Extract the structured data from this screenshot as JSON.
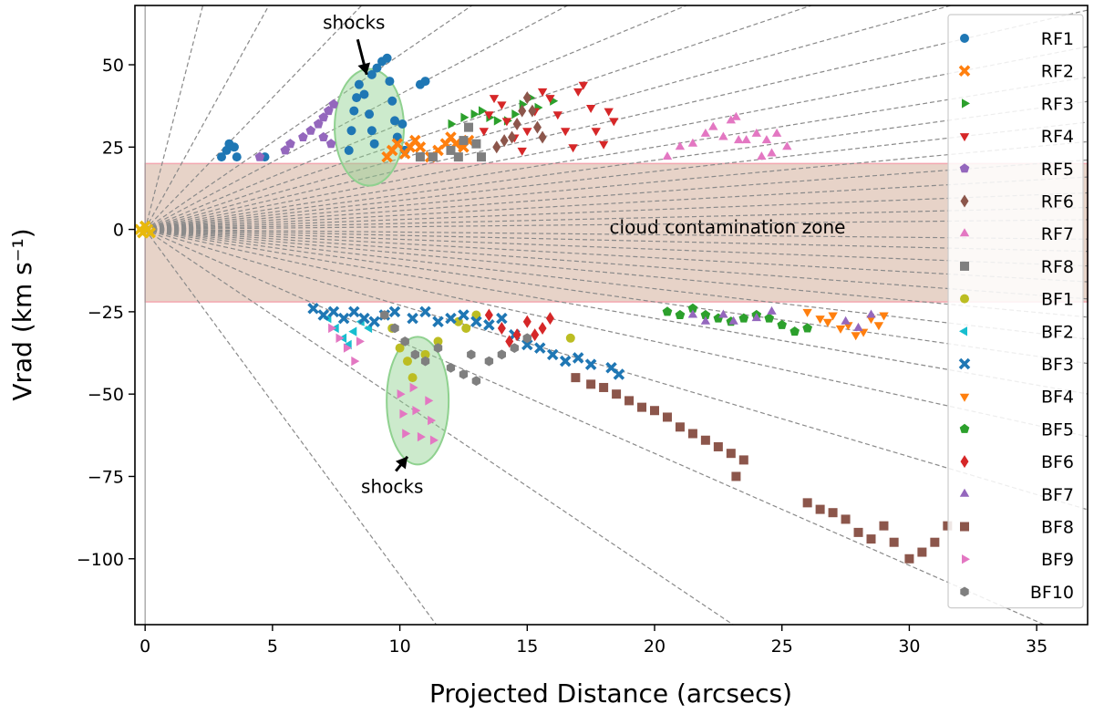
{
  "chart_data": {
    "type": "scatter",
    "xlabel": "Projected Distance (arcsecs)",
    "ylabel": "Vrad (km s⁻¹)",
    "xlim": [
      -0.4,
      37
    ],
    "ylim": [
      -120,
      68
    ],
    "xticks": [
      0,
      5,
      10,
      15,
      20,
      25,
      30,
      35
    ],
    "yticks": [
      50,
      25,
      0,
      -25,
      -50,
      -75,
      -100
    ],
    "xtick_labels": [
      "0",
      "5",
      "10",
      "15",
      "20",
      "25",
      "30",
      "35"
    ],
    "ytick_labels": [
      "50",
      "25",
      "0",
      "−25",
      "−50",
      "−75",
      "−100"
    ],
    "legend_position": "right",
    "grid": false,
    "band": {
      "y_from": -22,
      "y_to": 20,
      "label": "cloud contamination zone",
      "fill": "#e7d3c8",
      "edge": "#f4a6b0"
    },
    "annotations": [
      {
        "text": "shocks",
        "x": 8.2,
        "y": 61,
        "target": [
          8.7,
          47
        ]
      },
      {
        "text": "shocks",
        "x": 9.7,
        "y": -80,
        "target": [
          10.3,
          -69
        ]
      }
    ],
    "reference_line_slopes": [
      30,
      14,
      8,
      5.3,
      4.1,
      3.2,
      2.6,
      2.15,
      1.8,
      1.5,
      1.25,
      1.05,
      0.88,
      0.72,
      0.57,
      0.43,
      0.3,
      0.18,
      0.08,
      -0.08,
      -0.18,
      -0.3,
      -0.43,
      -0.57,
      -0.72,
      -0.9,
      -1.1,
      -1.35,
      -1.7,
      -2.3,
      -3.4,
      -5.2,
      -10.5
    ],
    "series": [
      {
        "name": "RF1",
        "marker": "circle",
        "color": "#1f77b4",
        "points": [
          [
            3.0,
            22
          ],
          [
            3.2,
            24
          ],
          [
            3.3,
            26
          ],
          [
            3.5,
            25
          ],
          [
            3.6,
            22
          ],
          [
            4.7,
            22
          ],
          [
            8.0,
            24
          ],
          [
            8.1,
            30
          ],
          [
            8.2,
            36
          ],
          [
            8.3,
            40
          ],
          [
            8.4,
            44
          ],
          [
            8.6,
            41
          ],
          [
            8.8,
            35
          ],
          [
            8.9,
            30
          ],
          [
            9.0,
            26
          ],
          [
            8.9,
            47
          ],
          [
            9.1,
            49
          ],
          [
            9.3,
            51
          ],
          [
            9.5,
            52
          ],
          [
            9.6,
            45
          ],
          [
            9.7,
            39
          ],
          [
            9.8,
            33
          ],
          [
            9.9,
            28
          ],
          [
            10.1,
            32
          ],
          [
            10.2,
            24
          ],
          [
            10.8,
            44
          ],
          [
            11.0,
            45
          ]
        ]
      },
      {
        "name": "RF2",
        "marker": "x",
        "color": "#ff7f0e",
        "points": [
          [
            9.5,
            22
          ],
          [
            9.7,
            24
          ],
          [
            9.9,
            26
          ],
          [
            10.2,
            23
          ],
          [
            10.4,
            25
          ],
          [
            10.6,
            27
          ],
          [
            10.8,
            25
          ],
          [
            11.2,
            22
          ],
          [
            11.5,
            24
          ],
          [
            11.8,
            26
          ],
          [
            12.0,
            28
          ],
          [
            12.2,
            26
          ],
          [
            12.5,
            25
          ],
          [
            12.7,
            27
          ]
        ]
      },
      {
        "name": "RF3",
        "marker": "tri_right",
        "color": "#2ca02c",
        "points": [
          [
            12.0,
            32
          ],
          [
            12.5,
            34
          ],
          [
            12.9,
            35
          ],
          [
            13.2,
            36
          ],
          [
            13.5,
            34
          ],
          [
            13.8,
            33
          ],
          [
            14.2,
            33
          ],
          [
            14.5,
            35
          ],
          [
            14.8,
            38
          ],
          [
            15.1,
            40
          ],
          [
            15.4,
            37
          ],
          [
            16.0,
            39
          ]
        ]
      },
      {
        "name": "RF4",
        "marker": "tri_down",
        "color": "#d62728",
        "points": [
          [
            13.3,
            30
          ],
          [
            13.5,
            35
          ],
          [
            13.7,
            40
          ],
          [
            14.0,
            38
          ],
          [
            14.2,
            33
          ],
          [
            14.5,
            28
          ],
          [
            14.8,
            24
          ],
          [
            15.0,
            30
          ],
          [
            15.3,
            36
          ],
          [
            15.6,
            42
          ],
          [
            15.9,
            40
          ],
          [
            16.2,
            35
          ],
          [
            16.5,
            30
          ],
          [
            16.8,
            25
          ],
          [
            17.0,
            42
          ],
          [
            17.2,
            44
          ],
          [
            17.5,
            37
          ],
          [
            17.7,
            30
          ],
          [
            18.0,
            26
          ],
          [
            18.2,
            36
          ],
          [
            18.4,
            33
          ]
        ]
      },
      {
        "name": "RF5",
        "marker": "pentagon",
        "color": "#9467bd",
        "points": [
          [
            4.5,
            22
          ],
          [
            5.5,
            24
          ],
          [
            5.7,
            26
          ],
          [
            6.2,
            28
          ],
          [
            6.5,
            30
          ],
          [
            6.8,
            32
          ],
          [
            7.0,
            34
          ],
          [
            7.2,
            36
          ],
          [
            7.4,
            38
          ],
          [
            7.0,
            28
          ],
          [
            7.3,
            26
          ]
        ]
      },
      {
        "name": "RF6",
        "marker": "diamond",
        "color": "#8c564b",
        "points": [
          [
            14.4,
            28
          ],
          [
            14.6,
            32
          ],
          [
            14.8,
            36
          ],
          [
            15.0,
            40
          ],
          [
            15.2,
            36
          ],
          [
            15.4,
            31
          ],
          [
            15.6,
            28
          ],
          [
            13.8,
            25
          ],
          [
            14.1,
            27
          ]
        ]
      },
      {
        "name": "RF7",
        "marker": "tri_up",
        "color": "#e377c2",
        "points": [
          [
            20.5,
            22
          ],
          [
            21.0,
            25
          ],
          [
            21.5,
            26
          ],
          [
            22.0,
            29
          ],
          [
            22.3,
            31
          ],
          [
            22.7,
            28
          ],
          [
            23.0,
            33
          ],
          [
            23.2,
            34
          ],
          [
            23.6,
            27
          ],
          [
            24.0,
            29
          ],
          [
            24.4,
            27
          ],
          [
            24.8,
            29
          ],
          [
            25.2,
            25
          ],
          [
            24.6,
            23
          ],
          [
            24.2,
            22
          ],
          [
            23.3,
            27
          ]
        ]
      },
      {
        "name": "RF8",
        "marker": "square",
        "color": "#7f7f7f",
        "points": [
          [
            10.8,
            22
          ],
          [
            11.3,
            22
          ],
          [
            12.0,
            24
          ],
          [
            12.3,
            22
          ],
          [
            12.5,
            27
          ],
          [
            12.7,
            31
          ],
          [
            13.0,
            26
          ],
          [
            13.2,
            22
          ]
        ]
      },
      {
        "name": "BF1",
        "marker": "circle",
        "color": "#bcbd22",
        "points": [
          [
            9.7,
            -30
          ],
          [
            10.0,
            -36
          ],
          [
            10.3,
            -40
          ],
          [
            10.5,
            -45
          ],
          [
            11.0,
            -38
          ],
          [
            11.5,
            -34
          ],
          [
            12.3,
            -28
          ],
          [
            12.6,
            -30
          ],
          [
            13.0,
            -26
          ],
          [
            16.7,
            -33
          ]
        ]
      },
      {
        "name": "BF2",
        "marker": "tri_left",
        "color": "#17becf",
        "points": [
          [
            7.2,
            -27
          ],
          [
            7.5,
            -30
          ],
          [
            7.8,
            -33
          ],
          [
            8.0,
            -35
          ],
          [
            8.2,
            -31
          ],
          [
            8.5,
            -28
          ],
          [
            8.8,
            -30
          ]
        ]
      },
      {
        "name": "BF3",
        "marker": "x",
        "color": "#1f77b4",
        "points": [
          [
            6.6,
            -24
          ],
          [
            7.0,
            -26
          ],
          [
            7.4,
            -25
          ],
          [
            7.8,
            -27
          ],
          [
            8.2,
            -25
          ],
          [
            8.6,
            -27
          ],
          [
            9.0,
            -28
          ],
          [
            9.4,
            -26
          ],
          [
            9.8,
            -25
          ],
          [
            10.5,
            -27
          ],
          [
            11.0,
            -25
          ],
          [
            11.5,
            -28
          ],
          [
            12.0,
            -27
          ],
          [
            12.5,
            -26
          ],
          [
            13.0,
            -28
          ],
          [
            13.5,
            -29
          ],
          [
            14.0,
            -27
          ],
          [
            14.5,
            -32
          ],
          [
            15.0,
            -35
          ],
          [
            15.5,
            -36
          ],
          [
            16.0,
            -38
          ],
          [
            16.5,
            -40
          ],
          [
            17.0,
            -39
          ],
          [
            17.5,
            -41
          ],
          [
            18.3,
            -42
          ],
          [
            18.6,
            -44
          ]
        ]
      },
      {
        "name": "BF4",
        "marker": "tri_down",
        "color": "#ff7f0e",
        "points": [
          [
            26.0,
            -25
          ],
          [
            26.5,
            -27
          ],
          [
            26.8,
            -28
          ],
          [
            27.0,
            -26
          ],
          [
            27.3,
            -30
          ],
          [
            27.6,
            -29
          ],
          [
            27.9,
            -32
          ],
          [
            28.2,
            -31
          ],
          [
            28.5,
            -27
          ],
          [
            28.8,
            -29
          ],
          [
            29.0,
            -26
          ]
        ]
      },
      {
        "name": "BF5",
        "marker": "pentagon",
        "color": "#2ca02c",
        "points": [
          [
            20.5,
            -25
          ],
          [
            21.0,
            -26
          ],
          [
            21.5,
            -24
          ],
          [
            22.0,
            -26
          ],
          [
            22.5,
            -27
          ],
          [
            23.0,
            -28
          ],
          [
            23.5,
            -27
          ],
          [
            24.0,
            -26
          ],
          [
            24.5,
            -27
          ],
          [
            25.0,
            -29
          ],
          [
            25.5,
            -31
          ],
          [
            26.0,
            -30
          ]
        ]
      },
      {
        "name": "BF6",
        "marker": "diamond",
        "color": "#d62728",
        "points": [
          [
            13.5,
            -26
          ],
          [
            14.0,
            -30
          ],
          [
            14.3,
            -34
          ],
          [
            14.6,
            -32
          ],
          [
            15.0,
            -28
          ],
          [
            15.3,
            -32
          ],
          [
            15.6,
            -30
          ],
          [
            15.9,
            -27
          ]
        ]
      },
      {
        "name": "BF7",
        "marker": "tri_up",
        "color": "#9467bd",
        "points": [
          [
            21.5,
            -26
          ],
          [
            22.0,
            -28
          ],
          [
            22.7,
            -26
          ],
          [
            23.1,
            -28
          ],
          [
            24.0,
            -27
          ],
          [
            24.6,
            -25
          ],
          [
            27.5,
            -28
          ],
          [
            28.0,
            -30
          ],
          [
            28.5,
            -26
          ]
        ]
      },
      {
        "name": "BF8",
        "marker": "square",
        "color": "#8c564b",
        "points": [
          [
            16.9,
            -45
          ],
          [
            17.5,
            -47
          ],
          [
            18.0,
            -48
          ],
          [
            18.5,
            -50
          ],
          [
            19.0,
            -52
          ],
          [
            19.5,
            -54
          ],
          [
            20.0,
            -55
          ],
          [
            20.5,
            -57
          ],
          [
            21.0,
            -60
          ],
          [
            21.5,
            -62
          ],
          [
            22.0,
            -64
          ],
          [
            22.5,
            -66
          ],
          [
            23.0,
            -68
          ],
          [
            23.5,
            -70
          ],
          [
            23.2,
            -75
          ],
          [
            26.0,
            -83
          ],
          [
            26.5,
            -85
          ],
          [
            27.0,
            -86
          ],
          [
            27.5,
            -88
          ],
          [
            28.0,
            -92
          ],
          [
            28.5,
            -94
          ],
          [
            29.0,
            -90
          ],
          [
            29.4,
            -95
          ],
          [
            30.0,
            -100
          ],
          [
            30.5,
            -98
          ],
          [
            31.0,
            -95
          ],
          [
            31.5,
            -90
          ]
        ]
      },
      {
        "name": "BF9",
        "marker": "tri_right",
        "color": "#e377c2",
        "points": [
          [
            7.3,
            -30
          ],
          [
            7.6,
            -33
          ],
          [
            7.9,
            -36
          ],
          [
            8.2,
            -40
          ],
          [
            8.4,
            -34
          ],
          [
            10.0,
            -50
          ],
          [
            10.1,
            -56
          ],
          [
            10.2,
            -62
          ],
          [
            10.5,
            -48
          ],
          [
            10.6,
            -55
          ],
          [
            10.8,
            -63
          ],
          [
            11.1,
            -52
          ],
          [
            11.2,
            -58
          ],
          [
            11.3,
            -64
          ]
        ]
      },
      {
        "name": "BF10",
        "marker": "hexagon",
        "color": "#7f7f7f",
        "points": [
          [
            9.4,
            -26
          ],
          [
            9.8,
            -30
          ],
          [
            10.2,
            -34
          ],
          [
            10.6,
            -38
          ],
          [
            11.0,
            -40
          ],
          [
            11.5,
            -36
          ],
          [
            12.0,
            -42
          ],
          [
            12.5,
            -44
          ],
          [
            13.0,
            -46
          ],
          [
            13.5,
            -40
          ],
          [
            14.0,
            -38
          ],
          [
            14.5,
            -36
          ],
          [
            15.0,
            -33
          ],
          [
            12.8,
            -38
          ]
        ]
      }
    ]
  }
}
